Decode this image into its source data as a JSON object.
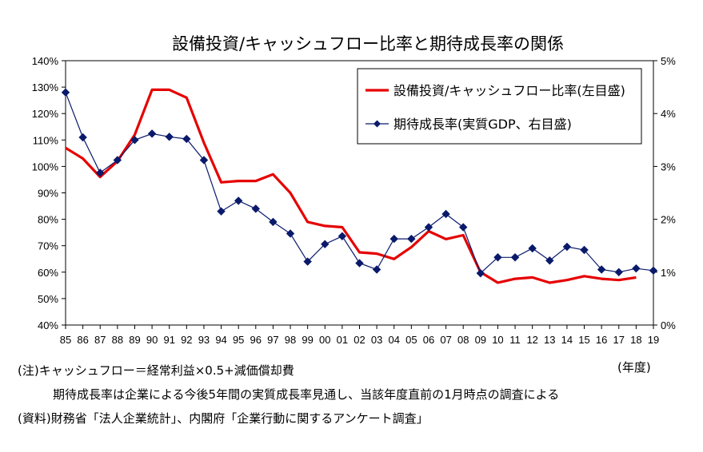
{
  "chart_data": {
    "type": "line",
    "title": "設備投資/キャッシュフロー比率と期待成長率の関係",
    "x": [
      "85",
      "86",
      "87",
      "88",
      "89",
      "90",
      "91",
      "92",
      "93",
      "94",
      "95",
      "96",
      "97",
      "98",
      "99",
      "00",
      "01",
      "02",
      "03",
      "04",
      "05",
      "06",
      "07",
      "08",
      "09",
      "10",
      "11",
      "12",
      "13",
      "14",
      "15",
      "16",
      "17",
      "18",
      "19"
    ],
    "xunit": "(年度)",
    "y_left": {
      "lim": [
        40,
        140
      ],
      "ticks": [
        "40%",
        "50%",
        "60%",
        "70%",
        "80%",
        "90%",
        "100%",
        "110%",
        "120%",
        "130%",
        "140%"
      ]
    },
    "y_right": {
      "lim": [
        0,
        5
      ],
      "ticks": [
        "0%",
        "1%",
        "2%",
        "3%",
        "4%",
        "5%"
      ]
    },
    "series": [
      {
        "name": "設備投資/キャッシュフロー比率(左目盛)",
        "axis": "left",
        "color": "#e60000",
        "values": [
          107,
          103,
          96,
          102,
          112,
          129,
          129,
          126,
          109,
          94,
          94.5,
          94.5,
          97,
          90,
          79,
          77.5,
          77,
          67.5,
          67,
          65,
          69.5,
          75.5,
          72.5,
          74,
          60,
          56,
          57.5,
          58,
          56,
          57,
          58.5,
          57.5,
          57,
          58,
          null
        ]
      },
      {
        "name": "期待成長率(実質GDP、右目盛)",
        "axis": "right",
        "color": "#0a1a6b",
        "values": [
          4.4,
          3.55,
          2.88,
          3.12,
          3.5,
          3.62,
          3.56,
          3.52,
          3.12,
          2.15,
          2.35,
          2.2,
          1.95,
          1.73,
          1.2,
          1.53,
          1.68,
          1.17,
          1.05,
          1.63,
          1.63,
          1.85,
          2.1,
          1.85,
          0.98,
          1.28,
          1.28,
          1.45,
          1.22,
          1.48,
          1.42,
          1.05,
          1.0,
          1.07,
          1.03
        ]
      }
    ],
    "legend_position": "top-right"
  },
  "notes": {
    "note1": "(注)キャッシュフロー＝経常利益×0.5+減価償却費",
    "note2": "期待成長率は企業による今後5年間の実質成長率見通し、当該年度直前の1月時点の調査による",
    "source": "(資料)財務省「法人企業統計」、内閣府「企業行動に関するアンケート調査」"
  }
}
